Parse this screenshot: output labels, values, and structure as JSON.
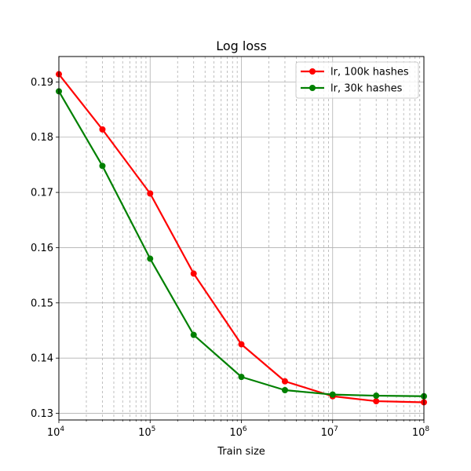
{
  "chart_data": {
    "type": "line",
    "title": "Log loss",
    "xlabel": "Train size",
    "ylabel": "",
    "xscale": "log",
    "xlim": [
      10000,
      100000000
    ],
    "ylim": [
      0.1288,
      0.1946
    ],
    "x_ticks": [
      {
        "value": 10000,
        "base": "10",
        "exp": "4"
      },
      {
        "value": 100000,
        "base": "10",
        "exp": "5"
      },
      {
        "value": 1000000,
        "base": "10",
        "exp": "6"
      },
      {
        "value": 10000000,
        "base": "10",
        "exp": "7"
      },
      {
        "value": 100000000,
        "base": "10",
        "exp": "8"
      }
    ],
    "y_ticks": [
      {
        "value": 0.13,
        "label": "0.13"
      },
      {
        "value": 0.14,
        "label": "0.14"
      },
      {
        "value": 0.15,
        "label": "0.15"
      },
      {
        "value": 0.16,
        "label": "0.16"
      },
      {
        "value": 0.17,
        "label": "0.17"
      },
      {
        "value": 0.18,
        "label": "0.18"
      },
      {
        "value": 0.19,
        "label": "0.19"
      }
    ],
    "grid": true,
    "legend_position": "top-right",
    "x": [
      10000,
      30000,
      100000,
      300000,
      1000000,
      3000000,
      10000000,
      30000000,
      100000000
    ],
    "series": [
      {
        "name": "lr, 100k hashes",
        "color": "#ff0000",
        "values": [
          0.1914,
          0.1814,
          0.1698,
          0.1553,
          0.1425,
          0.1358,
          0.1331,
          0.1322,
          0.132
        ]
      },
      {
        "name": "lr, 30k hashes",
        "color": "#008000",
        "values": [
          0.1883,
          0.1748,
          0.158,
          0.1442,
          0.1366,
          0.1342,
          0.1334,
          0.1332,
          0.1331
        ]
      }
    ]
  }
}
